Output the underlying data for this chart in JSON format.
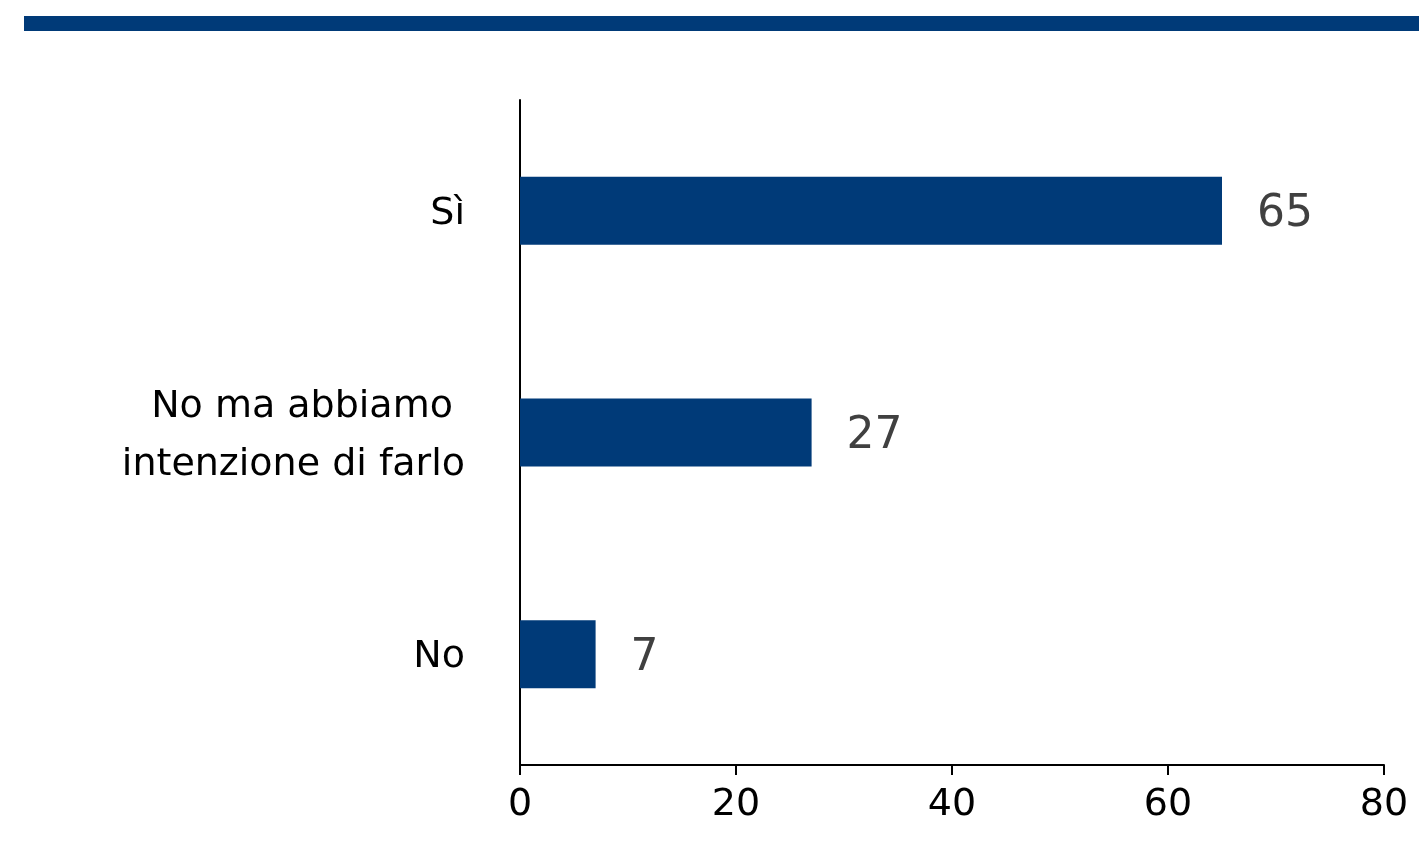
{
  "chart_data": {
    "type": "bar",
    "orientation": "horizontal",
    "categories": [
      "Sì",
      "No ma abbiamo intenzione di farlo",
      "No"
    ],
    "values": [
      65,
      27,
      7
    ],
    "color": "#003a78",
    "xlim": [
      0,
      80
    ],
    "xticks": [
      0,
      20,
      40,
      60,
      80
    ],
    "grid": false,
    "data_labels": true
  }
}
